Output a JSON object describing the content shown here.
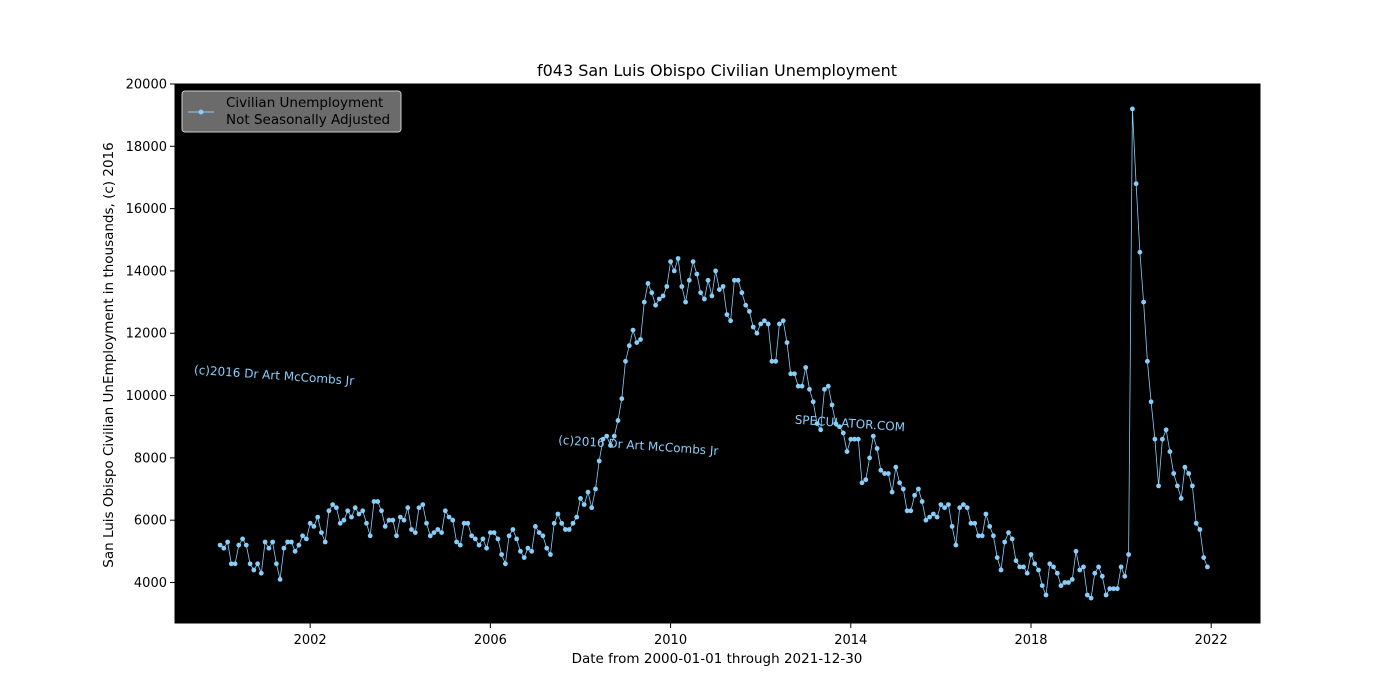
{
  "chart_data": {
    "type": "line",
    "title": "f043 San Luis Obispo Civilian Unemployment",
    "xlabel": "Date from 2000-01-01 through 2021-12-30",
    "ylabel": "San Luis Obispo Civilian UnEmployment in thousands, (c) 2016",
    "x_range": [
      "1999-01",
      "2023-02"
    ],
    "ylim": [
      2700,
      20000
    ],
    "x_ticks": [
      {
        "date": "2002-01",
        "label": "2002"
      },
      {
        "date": "2006-01",
        "label": "2006"
      },
      {
        "date": "2010-01",
        "label": "2010"
      },
      {
        "date": "2014-01",
        "label": "2014"
      },
      {
        "date": "2018-01",
        "label": "2018"
      },
      {
        "date": "2022-01",
        "label": "2022"
      }
    ],
    "y_ticks": [
      4000,
      6000,
      8000,
      10000,
      12000,
      14000,
      16000,
      18000,
      20000
    ],
    "y_tick_labels": [
      "4000",
      "6000",
      "8000",
      "10000",
      "12000",
      "14000",
      "16000",
      "18000",
      "20000"
    ],
    "grid": false,
    "background": "#000000",
    "legend_position": "upper-left",
    "legend_lines": [
      "Civilian Unemployment",
      "Not Seasonally Adjusted"
    ],
    "series": [
      {
        "name": "Civilian Unemployment Not Seasonally Adjusted",
        "color": "#87cefa",
        "start": "2000-01",
        "frequency": "monthly",
        "values": [
          5200,
          5100,
          5300,
          4600,
          4600,
          5200,
          5400,
          5200,
          4600,
          4400,
          4600,
          4300,
          5300,
          5100,
          5300,
          4600,
          4100,
          5100,
          5300,
          5300,
          5000,
          5200,
          5500,
          5400,
          5900,
          5800,
          6100,
          5600,
          5300,
          6300,
          6500,
          6400,
          5900,
          6000,
          6300,
          6100,
          6400,
          6200,
          6300,
          5900,
          5500,
          6600,
          6600,
          6300,
          5800,
          6000,
          6000,
          5500,
          6100,
          6000,
          6400,
          5700,
          5600,
          6400,
          6500,
          5900,
          5500,
          5600,
          5700,
          5600,
          6300,
          6100,
          6000,
          5300,
          5200,
          5900,
          5900,
          5500,
          5400,
          5200,
          5400,
          5100,
          5600,
          5600,
          5400,
          4900,
          4600,
          5500,
          5700,
          5400,
          5000,
          4800,
          5100,
          5000,
          5800,
          5600,
          5500,
          5100,
          4900,
          5900,
          6200,
          5900,
          5700,
          5700,
          5900,
          6100,
          6700,
          6500,
          6900,
          6400,
          7000,
          7900,
          8600,
          8700,
          8400,
          8700,
          9200,
          9900,
          11100,
          11600,
          12100,
          11700,
          11800,
          13000,
          13600,
          13300,
          12900,
          13100,
          13200,
          13500,
          14300,
          14000,
          14400,
          13500,
          13000,
          13700,
          14300,
          13900,
          13300,
          13100,
          13700,
          13200,
          14000,
          13400,
          13500,
          12600,
          12400,
          13700,
          13700,
          13300,
          12900,
          12700,
          12200,
          12000,
          12300,
          12400,
          12300,
          11100,
          11100,
          12300,
          12400,
          11700,
          10700,
          10700,
          10300,
          10300,
          10900,
          10200,
          9800,
          9100,
          8900,
          10200,
          10300,
          9700,
          9100,
          9000,
          8800,
          8200,
          8600,
          8600,
          8600,
          7200,
          7300,
          8000,
          8700,
          8300,
          7600,
          7500,
          7500,
          6900,
          7700,
          7200,
          7000,
          6300,
          6300,
          6800,
          7000,
          6600,
          6000,
          6100,
          6200,
          6100,
          6500,
          6400,
          6500,
          5800,
          5200,
          6400,
          6500,
          6400,
          5900,
          5900,
          5500,
          5500,
          6200,
          5800,
          5500,
          4800,
          4400,
          5300,
          5600,
          5400,
          4700,
          4500,
          4500,
          4300,
          4900,
          4600,
          4400,
          3900,
          3600,
          4600,
          4500,
          4300,
          3900,
          4000,
          4000,
          4100,
          5000,
          4400,
          4500,
          3600,
          3500,
          4300,
          4500,
          4200,
          3600,
          3800,
          3800,
          3800,
          4500,
          4200,
          4900,
          19200,
          16800,
          14600,
          13000,
          11100,
          9800,
          8600,
          7100,
          8600,
          8900,
          8200,
          7500,
          7100,
          6700,
          7700,
          7500,
          7100,
          5900,
          5700,
          4800,
          4500
        ]
      }
    ],
    "annotations": [
      {
        "text": "(c)2016 Dr Art McCombs Jr",
        "anchor_date": "1999-06",
        "anchor_value": 10700
      },
      {
        "text": "(c)2016 Dr Art McCombs Jr",
        "anchor_date": "2007-07",
        "anchor_value": 8450
      },
      {
        "text": "SPECULATOR.COM",
        "anchor_date": "2012-10",
        "anchor_value": 9100
      }
    ]
  }
}
